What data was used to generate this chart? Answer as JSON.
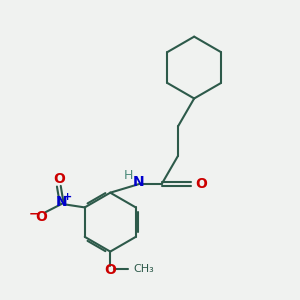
{
  "background_color": "#f0f2f0",
  "bond_color": "#2d5a4a",
  "nitrogen_color": "#0000cc",
  "oxygen_color": "#cc0000",
  "h_color": "#4a8a7a",
  "line_width": 1.5,
  "figsize": [
    3.0,
    3.0
  ],
  "dpi": 100,
  "xlim": [
    0,
    10
  ],
  "ylim": [
    0,
    10
  ]
}
